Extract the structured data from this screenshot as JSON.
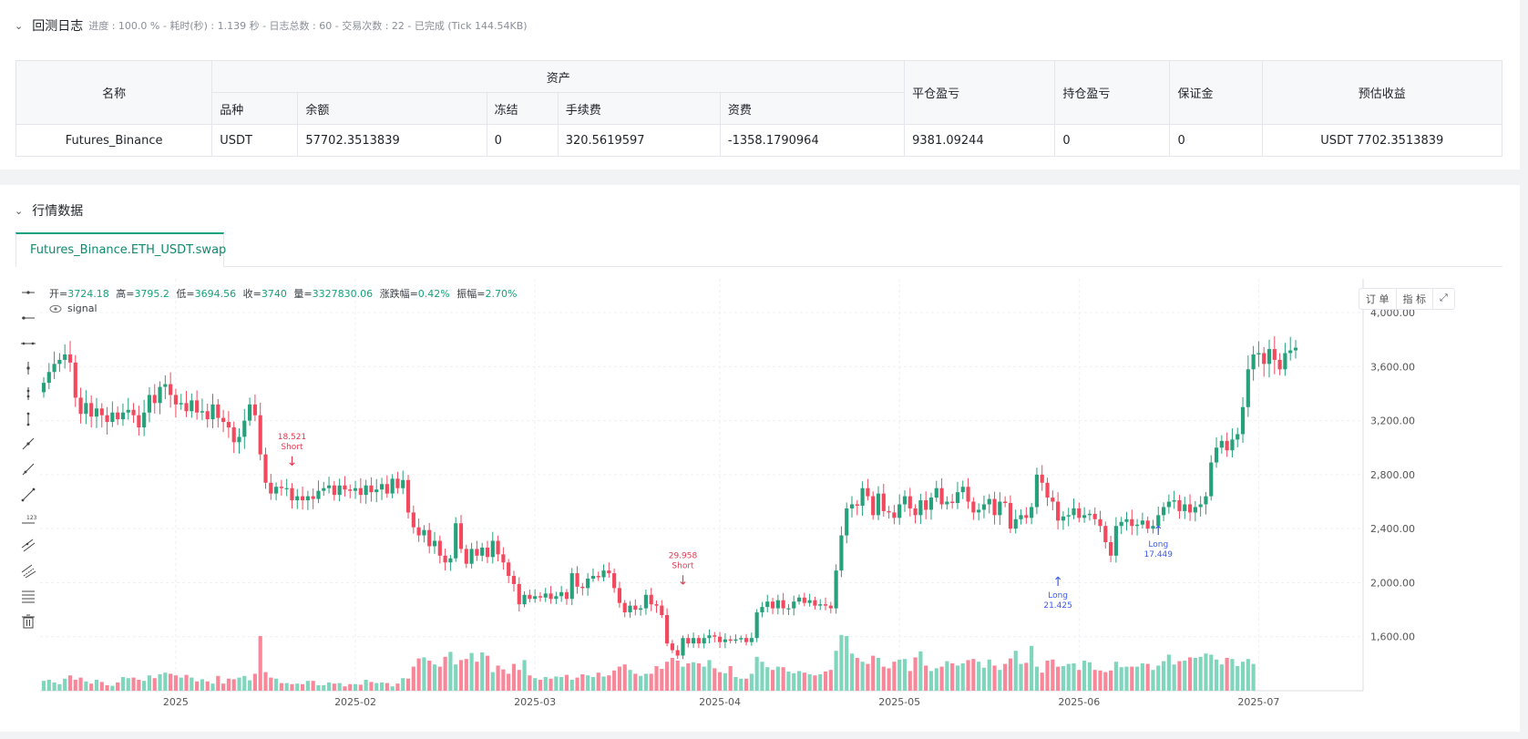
{
  "log": {
    "title": "回测日志",
    "meta": "进度 : 100.0 % - 耗时(秒) : 1.139 秒 - 日志总数 : 60 - 交易次数 : 22 - 已完成 (Tick 144.54KB)"
  },
  "assets_table": {
    "h_name": "名称",
    "h_assets": "资产",
    "h_symbol": "品种",
    "h_balance": "余额",
    "h_frozen": "冻结",
    "h_fee": "手续费",
    "h_funding": "资费",
    "h_close_pnl": "平仓盈亏",
    "h_pos_pnl": "持仓盈亏",
    "h_margin": "保证金",
    "h_est": "预估收益",
    "row": {
      "name": "Futures_Binance",
      "symbol": "USDT",
      "balance": "57702.3513839",
      "frozen": "0",
      "fee": "320.5619597",
      "funding": "-1358.1790964",
      "close_pnl": "9381.09244",
      "pos_pnl": "0",
      "margin": "0",
      "est": "USDT 7702.3513839"
    }
  },
  "market": {
    "title": "行情数据",
    "tab": "Futures_Binance.ETH_USDT.swap",
    "ohlc": {
      "open_label": "开=",
      "open": "3724.18",
      "high_label": "高=",
      "high": "3795.2",
      "low_label": "低=",
      "low": "3694.56",
      "close_label": "收=",
      "close": "3740",
      "vol_label": "量=",
      "vol": "3327830.06",
      "chg_label": "涨跌幅=",
      "chg": "0.42%",
      "amp_label": "振幅=",
      "amp": "2.70%"
    },
    "signal": "signal",
    "btn_order": "订 单",
    "btn_indicator": "指 标",
    "tools": [
      "horizontal-line-icon",
      "horizontal-ray-icon",
      "extended-line-icon",
      "vertical-line-icon",
      "vertical-ray-icon",
      "vertical-segment-icon",
      "trend-line-icon",
      "ray-line-icon",
      "segment-icon",
      "price-label-icon",
      "parallel-channel-icon",
      "price-channel-icon",
      "fibonacci-icon",
      "trash-icon"
    ]
  },
  "colors": {
    "up": "#26a17b",
    "down": "#f2495e",
    "vol_up": "#80d6bd",
    "vol_down": "#f8879a",
    "long": "#3b5bf0",
    "short": "#e8384f",
    "accent": "#10a37f"
  },
  "chart_data": {
    "type": "candlestick",
    "y_ticks": [
      "4,000.00",
      "3,600.00",
      "3,200.00",
      "2,800.00",
      "2,400.00",
      "2,000.00",
      "1,600.00"
    ],
    "y_range": [
      1200,
      4250
    ],
    "x_labels": [
      "2025",
      "2025-02",
      "2025-03",
      "2025-04",
      "2025-05",
      "2025-06",
      "2025-07"
    ],
    "markers": [
      {
        "label": "Short",
        "value": "18.521",
        "price": 2800
      },
      {
        "label": "Short",
        "value": "29.958",
        "price": 1920
      },
      {
        "label": "Long",
        "value": "21.425",
        "price": 2150
      },
      {
        "label": "Long",
        "value": "17.449",
        "price": 2530
      }
    ],
    "closes": [
      3480,
      3560,
      3620,
      3650,
      3690,
      3630,
      3370,
      3250,
      3330,
      3230,
      3290,
      3240,
      3190,
      3260,
      3210,
      3260,
      3280,
      3240,
      3150,
      3260,
      3390,
      3330,
      3450,
      3470,
      3390,
      3320,
      3330,
      3270,
      3350,
      3260,
      3270,
      3210,
      3320,
      3220,
      3190,
      3150,
      3040,
      3080,
      3200,
      3320,
      3240,
      2950,
      2740,
      2660,
      2710,
      2700,
      2700,
      2610,
      2640,
      2610,
      2640,
      2620,
      2680,
      2700,
      2720,
      2650,
      2720,
      2690,
      2680,
      2700,
      2650,
      2720,
      2670,
      2690,
      2730,
      2660,
      2770,
      2700,
      2760,
      2520,
      2410,
      2350,
      2390,
      2270,
      2310,
      2200,
      2150,
      2180,
      2440,
      2250,
      2140,
      2250,
      2200,
      2260,
      2190,
      2310,
      2210,
      2150,
      2050,
      1990,
      1840,
      1910,
      1880,
      1900,
      1890,
      1920,
      1880,
      1900,
      1930,
      1880,
      2070,
      1970,
      1960,
      2030,
      2050,
      2040,
      2090,
      2070,
      1960,
      1850,
      1780,
      1830,
      1800,
      1810,
      1910,
      1840,
      1830,
      1760,
      1550,
      1500,
      1460,
      1590,
      1550,
      1590,
      1550,
      1590,
      1610,
      1600,
      1560,
      1580,
      1570,
      1580,
      1590,
      1560,
      1590,
      1780,
      1820,
      1860,
      1810,
      1870,
      1810,
      1810,
      1860,
      1890,
      1850,
      1870,
      1830,
      1840,
      1830,
      1810,
      2090,
      2350,
      2550,
      2580,
      2570,
      2700,
      2640,
      2500,
      2660,
      2530,
      2520,
      2480,
      2580,
      2640,
      2550,
      2500,
      2610,
      2540,
      2630,
      2700,
      2580,
      2600,
      2590,
      2670,
      2710,
      2600,
      2520,
      2540,
      2580,
      2620,
      2500,
      2600,
      2590,
      2400,
      2470,
      2500,
      2480,
      2560,
      2800,
      2740,
      2630,
      2600,
      2460,
      2490,
      2500,
      2550,
      2480,
      2500,
      2510,
      2470,
      2420,
      2300,
      2200,
      2420,
      2450,
      2470,
      2420,
      2430,
      2460,
      2400,
      2420,
      2500,
      2560,
      2600,
      2610,
      2530,
      2580,
      2520,
      2560,
      2580,
      2640,
      2890,
      3000,
      3050,
      2980,
      3060,
      3100,
      3300,
      3580,
      3690,
      3700,
      3620,
      3730,
      3650,
      3580,
      3700,
      3720,
      3740
    ],
    "volumes": [
      0.18,
      0.2,
      0.15,
      0.12,
      0.22,
      0.28,
      0.2,
      0.24,
      0.17,
      0.13,
      0.2,
      0.16,
      0.1,
      0.09,
      0.15,
      0.25,
      0.23,
      0.24,
      0.2,
      0.18,
      0.28,
      0.23,
      0.3,
      0.33,
      0.31,
      0.28,
      0.24,
      0.29,
      0.24,
      0.17,
      0.21,
      0.17,
      0.13,
      0.27,
      0.13,
      0.22,
      0.21,
      0.24,
      0.27,
      0.19,
      0.31,
      1.0,
      0.34,
      0.24,
      0.22,
      0.14,
      0.14,
      0.12,
      0.13,
      0.12,
      0.18,
      0.18,
      0.1,
      0.1,
      0.15,
      0.13,
      0.14,
      0.08,
      0.12,
      0.12,
      0.11,
      0.2,
      0.16,
      0.14,
      0.15,
      0.14,
      0.08,
      0.13,
      0.23,
      0.22,
      0.44,
      0.59,
      0.61,
      0.55,
      0.48,
      0.44,
      0.62,
      0.71,
      0.48,
      0.56,
      0.58,
      0.69,
      0.53,
      0.7,
      0.64,
      0.34,
      0.46,
      0.39,
      0.31,
      0.49,
      0.38,
      0.56,
      0.28,
      0.23,
      0.2,
      0.25,
      0.22,
      0.26,
      0.25,
      0.29,
      0.2,
      0.24,
      0.3,
      0.28,
      0.25,
      0.33,
      0.26,
      0.28,
      0.37,
      0.44,
      0.48,
      0.38,
      0.31,
      0.27,
      0.31,
      0.31,
      0.45,
      0.4,
      0.53,
      0.6,
      0.55,
      0.44,
      0.5,
      0.52,
      0.5,
      0.44,
      0.56,
      0.41,
      0.34,
      0.32,
      0.45,
      0.25,
      0.22,
      0.22,
      0.31,
      0.62,
      0.53,
      0.43,
      0.38,
      0.44,
      0.43,
      0.35,
      0.32,
      0.36,
      0.33,
      0.3,
      0.28,
      0.3,
      0.35,
      0.38,
      0.73,
      1.02,
      1.0,
      0.68,
      0.6,
      0.53,
      0.49,
      0.64,
      0.6,
      0.44,
      0.41,
      0.53,
      0.57,
      0.58,
      0.36,
      0.61,
      0.72,
      0.46,
      0.36,
      0.41,
      0.44,
      0.54,
      0.5,
      0.46,
      0.5,
      0.56,
      0.58,
      0.53,
      0.42,
      0.57,
      0.46,
      0.38,
      0.49,
      0.59,
      0.73,
      0.49,
      0.51,
      0.82,
      0.44,
      0.33,
      0.55,
      0.57,
      0.44,
      0.45,
      0.49,
      0.5,
      0.38,
      0.55,
      0.52,
      0.38,
      0.37,
      0.34,
      0.37,
      0.53,
      0.43,
      0.44,
      0.44,
      0.44,
      0.5,
      0.49,
      0.38,
      0.46,
      0.54,
      0.66,
      0.48,
      0.54,
      0.55,
      0.61,
      0.6,
      0.62,
      0.68,
      0.66,
      0.57,
      0.48,
      0.6,
      0.58,
      0.45,
      0.53,
      0.58,
      0.49
    ]
  }
}
